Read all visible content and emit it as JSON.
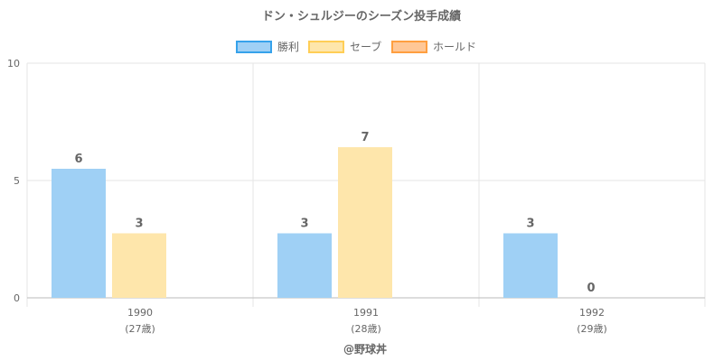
{
  "chart_data": {
    "type": "bar",
    "title": "ドン・シュルジーのシーズン投手成績",
    "categories": [
      "1990",
      "1991",
      "1992"
    ],
    "category_sublabels": [
      "(27歳)",
      "(28歳)",
      "(29歳)"
    ],
    "series": [
      {
        "name": "勝利",
        "values": [
          6,
          3,
          3
        ],
        "color": "#9fd0f5",
        "border": "#36a2eb"
      },
      {
        "name": "セーブ",
        "values": [
          3,
          7,
          0
        ],
        "color": "#fee6ab",
        "border": "#ffce56"
      },
      {
        "name": "ホールド",
        "values": [
          null,
          null,
          null
        ],
        "color": "#ffc796",
        "border": "#ff9f40"
      }
    ],
    "bar_heights_shown": {
      "勝利": [
        5.5,
        2.75,
        2.75
      ],
      "セーブ": [
        2.75,
        6.42,
        0
      ]
    },
    "ylim": [
      0,
      10
    ],
    "yticks": [
      0,
      5,
      10
    ],
    "xlabel": "",
    "ylabel": "",
    "grid": true,
    "legend_position": "top-center"
  },
  "credit": "@野球丼"
}
